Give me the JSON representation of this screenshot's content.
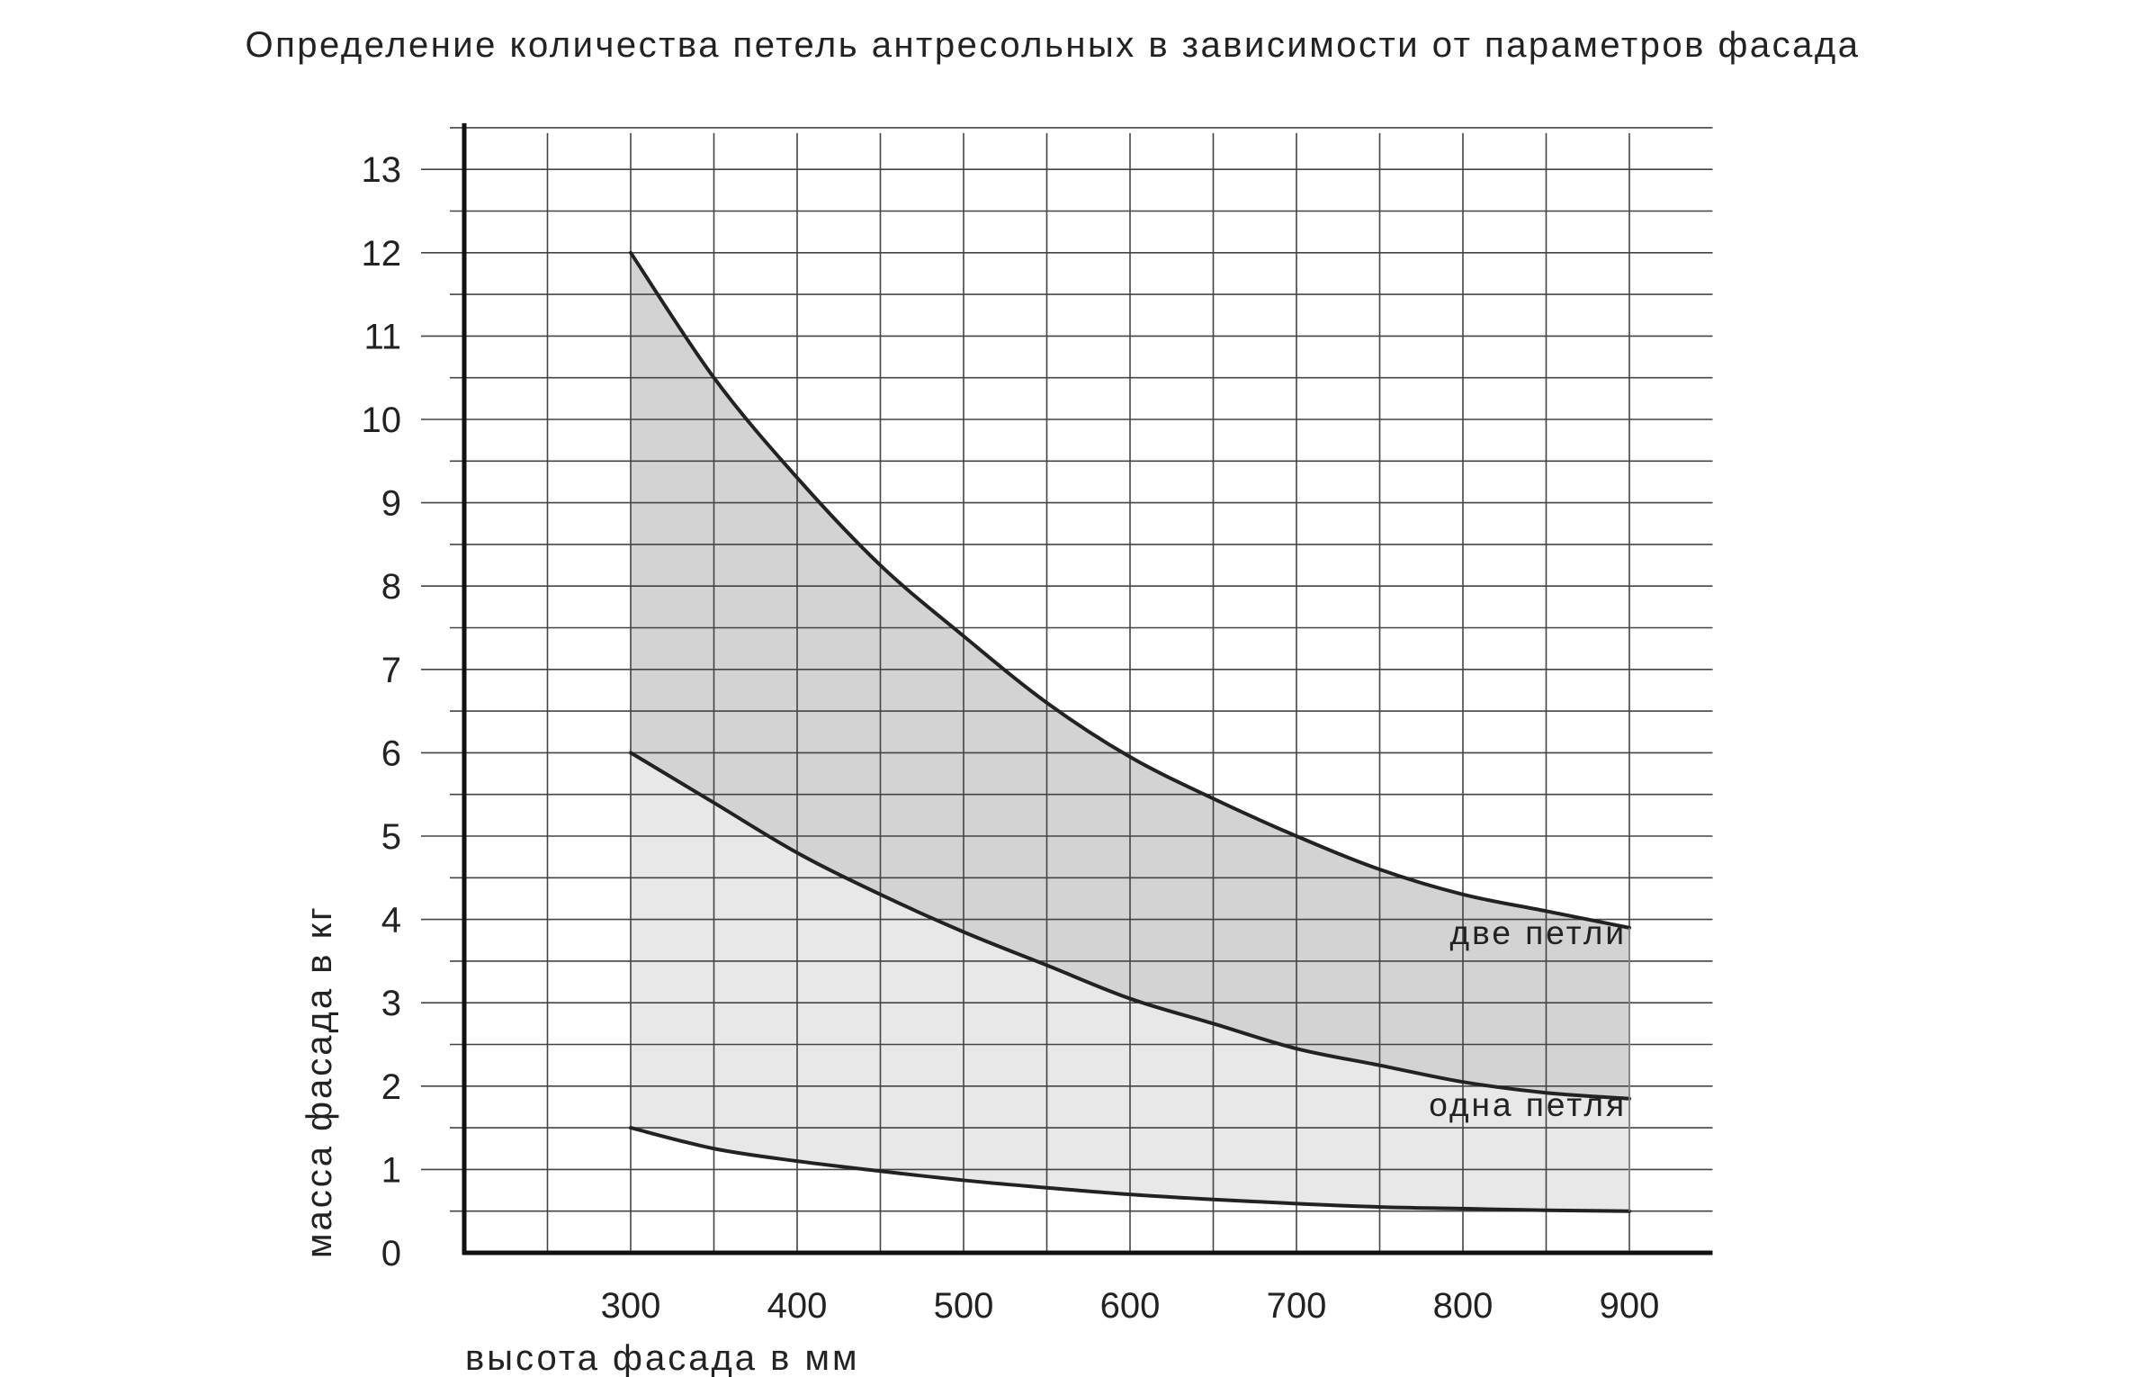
{
  "chart_data": {
    "type": "area",
    "title": "Определение количества петель антресольных в зависимости от параметров фасада",
    "xlabel": "высота фасада в мм",
    "ylabel": "масса фасада в кг",
    "xlim": [
      200,
      950
    ],
    "ylim": [
      0,
      13.5
    ],
    "x_ticks": [
      300,
      400,
      500,
      600,
      700,
      800,
      900
    ],
    "y_ticks": [
      0,
      1,
      2,
      3,
      4,
      5,
      6,
      7,
      8,
      9,
      10,
      11,
      12,
      13
    ],
    "grid": true,
    "x": [
      300,
      350,
      400,
      450,
      500,
      550,
      600,
      650,
      700,
      750,
      800,
      850,
      900
    ],
    "series": [
      {
        "name": "",
        "values": [
          12.0,
          10.5,
          9.3,
          8.25,
          7.4,
          6.6,
          5.95,
          5.45,
          5.0,
          4.6,
          4.3,
          4.1,
          3.9
        ]
      },
      {
        "name": "",
        "values": [
          6.0,
          5.4,
          4.8,
          4.3,
          3.85,
          3.45,
          3.05,
          2.75,
          2.45,
          2.25,
          2.05,
          1.92,
          1.85
        ]
      },
      {
        "name": "",
        "values": [
          1.5,
          1.25,
          1.1,
          0.98,
          0.87,
          0.78,
          0.7,
          0.64,
          0.59,
          0.55,
          0.53,
          0.51,
          0.5
        ]
      }
    ],
    "regions": [
      {
        "name": "две петли",
        "fill": "#d3d3d3"
      },
      {
        "name": "одна петля",
        "fill": "#e8e8e8"
      }
    ],
    "line_color": "#222222",
    "grid_color": "#444444"
  }
}
